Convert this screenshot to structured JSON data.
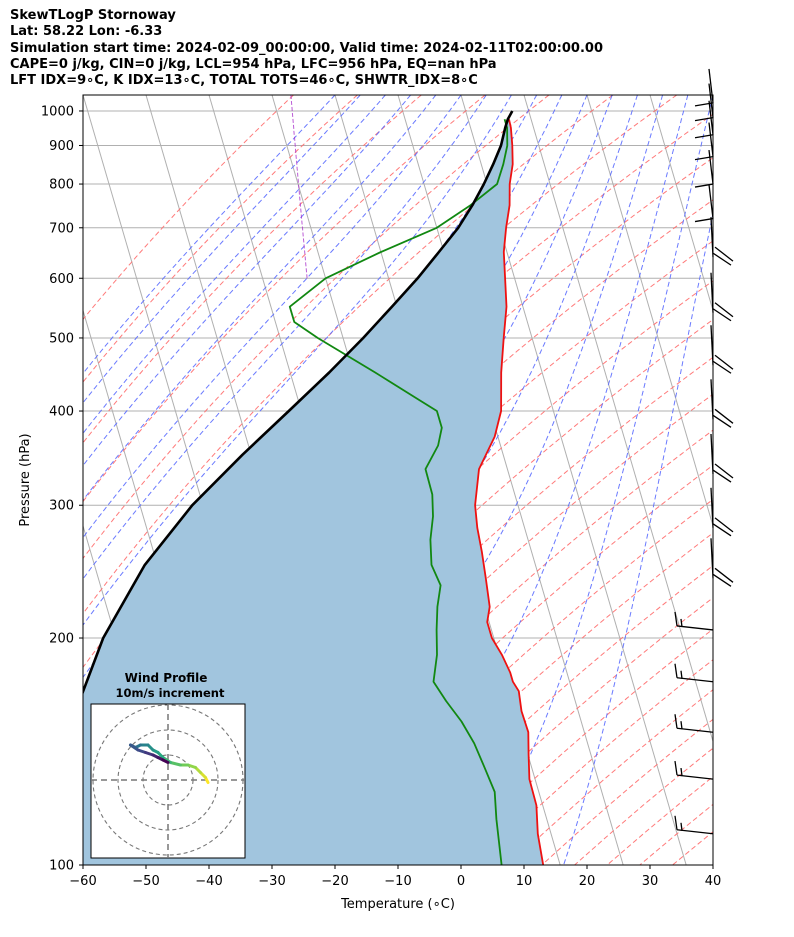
{
  "header": {
    "line1": "SkewTLogP Stornoway",
    "line2": "Lat: 58.22   Lon: -6.33",
    "line3": "Simulation start time: 2024-02-09_00:00:00, Valid time: 2024-02-11T02:00:00.00",
    "line4": "CAPE=0 j/kg, CIN=0 j/kg, LCL=954 hPa, LFC=956 hPa, EQ=nan hPa",
    "line5": "LFT IDX=9∘C, K IDX=13∘C, TOTAL TOTS=46∘C, SHWTR_IDX=8∘C"
  },
  "colors": {
    "temperature": "#ee1111",
    "dewpoint": "#118811",
    "parcel": "#000000",
    "cape_fill": "#a1c5de",
    "dry_adiabat": "#ff6b6b",
    "moist_adiabat": "#5a6bff",
    "mixing_ratio": "#aa33cc",
    "isotherm": "#aaaaaa"
  },
  "chart_data": [
    {
      "type": "line",
      "subtype": "skew-t log-p",
      "xlabel": "Temperature (∘C)",
      "ylabel": "Pressure (hPa)",
      "xlim": [
        -60,
        40
      ],
      "ylim": [
        1050,
        100
      ],
      "yscale": "log",
      "x_ticks": [
        "−60",
        "−50",
        "−40",
        "−30",
        "−20",
        "−10",
        "0",
        "10",
        "20",
        "30",
        "40"
      ],
      "y_ticks": [
        "100",
        "200",
        "300",
        "400",
        "500",
        "600",
        "700",
        "800",
        "900",
        "1000"
      ],
      "grid": true,
      "series": [
        {
          "role": "temperature",
          "points": [
            [
              6.5,
              975
            ],
            [
              6.4,
              950
            ],
            [
              5.8,
              900
            ],
            [
              5.0,
              850
            ],
            [
              3.6,
              800
            ],
            [
              2.6,
              750
            ],
            [
              1.0,
              700
            ],
            [
              -0.5,
              650
            ],
            [
              -1.5,
              600
            ],
            [
              -2.6,
              550
            ],
            [
              -4.5,
              500
            ],
            [
              -6.5,
              450
            ],
            [
              -8.3,
              400
            ],
            [
              -10.5,
              370
            ],
            [
              -14.5,
              335
            ],
            [
              -16.8,
              300
            ],
            [
              -17.5,
              280
            ],
            [
              -17.9,
              260
            ],
            [
              -18.5,
              240
            ],
            [
              -19.2,
              220
            ],
            [
              -20.3,
              210
            ],
            [
              -20.3,
              200
            ],
            [
              -19.5,
              190
            ],
            [
              -19.0,
              180
            ],
            [
              -19.0,
              175
            ],
            [
              -18.5,
              170
            ],
            [
              -19.0,
              160
            ],
            [
              -18.9,
              150
            ],
            [
              -19.9,
              140
            ],
            [
              -20.9,
              130
            ],
            [
              -21.0,
              120
            ],
            [
              -22.1,
              110
            ],
            [
              -22.7,
              100
            ]
          ]
        },
        {
          "role": "dewpoint",
          "points": [
            [
              5.8,
              975
            ],
            [
              5.8,
              950
            ],
            [
              5.0,
              900
            ],
            [
              3.5,
              850
            ],
            [
              1.6,
              800
            ],
            [
              -3.6,
              750
            ],
            [
              -10.0,
              700
            ],
            [
              -20.0,
              650
            ],
            [
              -30.0,
              600
            ],
            [
              -37.0,
              550
            ],
            [
              -37.0,
              525
            ],
            [
              -34.0,
              500
            ],
            [
              -26.5,
              450
            ],
            [
              -21.0,
              415
            ],
            [
              -18.5,
              400
            ],
            [
              -18.5,
              380
            ],
            [
              -19.9,
              360
            ],
            [
              -23.0,
              335
            ],
            [
              -23.1,
              310
            ],
            [
              -24.0,
              290
            ],
            [
              -25.5,
              270
            ],
            [
              -26.5,
              250
            ],
            [
              -26.0,
              235
            ],
            [
              -27.5,
              220
            ],
            [
              -28.7,
              205
            ],
            [
              -29.8,
              190
            ],
            [
              -31.6,
              175
            ],
            [
              -30.5,
              165
            ],
            [
              -29.0,
              155
            ],
            [
              -28.0,
              145
            ],
            [
              -27.5,
              135
            ],
            [
              -27.0,
              125
            ],
            [
              -28.0,
              115
            ],
            [
              -29.3,
              100
            ]
          ]
        },
        {
          "role": "parcel",
          "points": [
            [
              7.4,
              1000
            ],
            [
              6.3,
              975
            ],
            [
              5.5,
              950
            ],
            [
              4.0,
              900
            ],
            [
              1.9,
              850
            ],
            [
              -0.5,
              800
            ],
            [
              -3.3,
              750
            ],
            [
              -6.6,
              700
            ],
            [
              -10.8,
              650
            ],
            [
              -15.4,
              600
            ],
            [
              -20.8,
              550
            ],
            [
              -26.8,
              500
            ],
            [
              -33.8,
              450
            ],
            [
              -42.0,
              400
            ],
            [
              -51.4,
              350
            ],
            [
              -61.7,
              300
            ],
            [
              -72.0,
              250
            ],
            [
              -82.0,
              200
            ],
            [
              -92.0,
              150
            ],
            [
              -100.0,
              100
            ]
          ]
        }
      ],
      "hodograph": {
        "title": "Wind Profile",
        "subtitle": "10m/s increment",
        "rings": [
          10,
          20,
          30
        ],
        "points": [
          [
            16,
            -1
          ],
          [
            15,
            1
          ],
          [
            13,
            3
          ],
          [
            11,
            5
          ],
          [
            8,
            6
          ],
          [
            5,
            6
          ],
          [
            1,
            7
          ],
          [
            -2,
            9
          ],
          [
            -4,
            11
          ],
          [
            -6,
            12
          ],
          [
            -8,
            14
          ],
          [
            -11,
            14
          ],
          [
            -13,
            13
          ],
          [
            -15,
            14
          ],
          [
            -12,
            12
          ],
          [
            -9,
            11
          ],
          [
            -6,
            10
          ],
          [
            -4,
            9
          ],
          [
            -2,
            8
          ],
          [
            0,
            7
          ]
        ]
      },
      "wind_barbs": [
        {
          "pressure": 110
        },
        {
          "pressure": 130
        },
        {
          "pressure": 150
        },
        {
          "pressure": 175
        },
        {
          "pressure": 205
        },
        {
          "pressure": 240
        },
        {
          "pressure": 280
        },
        {
          "pressure": 330
        },
        {
          "pressure": 390
        },
        {
          "pressure": 460
        },
        {
          "pressure": 540
        },
        {
          "pressure": 640
        },
        {
          "pressure": 720
        },
        {
          "pressure": 800
        },
        {
          "pressure": 870
        },
        {
          "pressure": 930
        },
        {
          "pressure": 980
        },
        {
          "pressure": 1025
        }
      ]
    }
  ]
}
